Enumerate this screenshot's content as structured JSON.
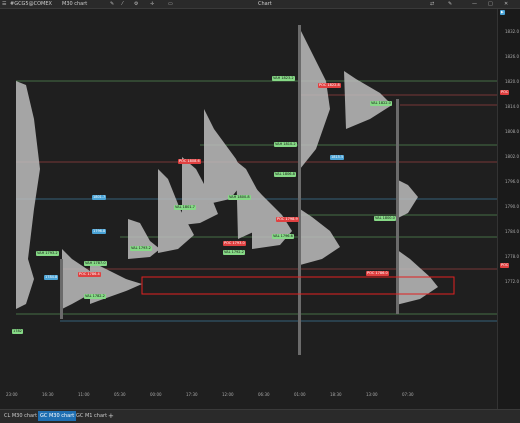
{
  "toolbar": {
    "symbol": "#GCG5@COMEX",
    "timeframe": "M30 chart",
    "title": "Chart"
  },
  "price_labels": [
    "1832.0",
    "1830.0",
    "1828.0",
    "1826.0",
    "1824.0",
    "1822.0",
    "1820.0",
    "1818.0",
    "1816.0",
    "1814.0",
    "1812.0",
    "1810.0",
    "1808.0",
    "1806.0",
    "1804.0",
    "1802.0",
    "1800.0",
    "1798.0",
    "1796.0",
    "1794.0",
    "1792.0",
    "1790.0",
    "1788.0",
    "1786.0",
    "1784.0",
    "1782.0",
    "1780.0",
    "1778.0",
    "1776.0",
    "1774.0",
    "1772.0"
  ],
  "poc_right_label": "POC",
  "time_labels": [
    "23:00",
    "16:30",
    "11:00",
    "05:30",
    "00:00",
    "17:30",
    "12:00",
    "06:30",
    "01:00",
    "18:30",
    "13:00",
    "07:30"
  ],
  "left_value": "1782",
  "tabs": [
    "CL M30 chart",
    "GC M30 chart",
    "GC M1 chart"
  ],
  "add_tab": "+"
}
